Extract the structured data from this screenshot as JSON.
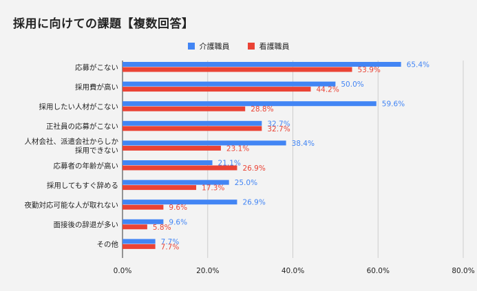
{
  "chart_data": {
    "type": "bar",
    "orientation": "horizontal",
    "title": "採用に向けての課題【複数回答】",
    "categories": [
      "応募がこない",
      "採用費が高い",
      "採用したい人材がこない",
      "正社員の応募がこない",
      "人材会社、派遣会社からしか\n採用できない",
      "応募者の年齢が高い",
      "採用してもすぐ辞める",
      "夜勤対応可能な人が取れない",
      "面接後の辞退が多い",
      "その他"
    ],
    "series": [
      {
        "name": "介護職員",
        "color": "#4285f4",
        "values": [
          65.4,
          50.0,
          59.6,
          32.7,
          38.4,
          21.1,
          25.0,
          26.9,
          9.6,
          7.7
        ],
        "labels": [
          "65.4%",
          "50.0%",
          "59.6%",
          "32.7%",
          "38.4%",
          "21.1%",
          "25.0%",
          "26.9%",
          "9.6%",
          "7.7%"
        ]
      },
      {
        "name": "看護職員",
        "color": "#ea4335",
        "values": [
          53.9,
          44.2,
          28.8,
          32.7,
          23.1,
          26.9,
          17.3,
          9.6,
          5.8,
          7.7
        ],
        "labels": [
          "53.9%",
          "44.2%",
          "28.8%",
          "32.7%",
          "23.1%",
          "26.9%",
          "17.3%",
          "9.6%",
          "5.8%",
          "7.7%"
        ]
      }
    ],
    "xlim": [
      0,
      80
    ],
    "xticks": [
      0,
      20,
      40,
      60,
      80
    ],
    "xtick_labels": [
      "0.0%",
      "20.0%",
      "40.0%",
      "60.0%",
      "80.0%"
    ],
    "legend_position": "top-center",
    "grid": "vertical"
  }
}
